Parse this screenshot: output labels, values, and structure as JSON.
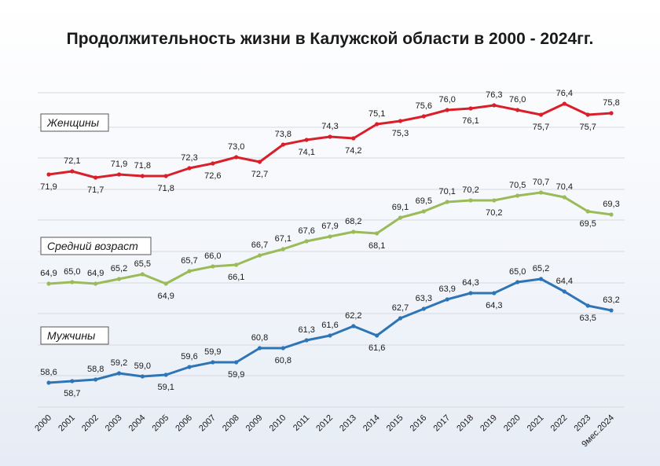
{
  "title": "Продолжительность жизни в Калужской области в 2000 - 2024гг.",
  "chart_data": {
    "type": "line",
    "title": "Продолжительность жизни в Калужской области в 2000 - 2024гг.",
    "categories": [
      "2000",
      "2001",
      "2002",
      "2003",
      "2004",
      "2005",
      "2006",
      "2007",
      "2008",
      "2009",
      "2010",
      "2011",
      "2012",
      "2013",
      "2014",
      "2015",
      "2016",
      "2017",
      "2018",
      "2019",
      "2020",
      "2021",
      "2022",
      "2023",
      "9мес.2024"
    ],
    "ylim": [
      57.5,
      77.5
    ],
    "grid": true,
    "legend": "inline labels",
    "series": [
      {
        "name": "Женщины",
        "color": "#d9202a",
        "values": [
          71.9,
          72.1,
          71.7,
          71.9,
          71.8,
          71.8,
          72.3,
          72.6,
          73.0,
          72.7,
          73.8,
          74.1,
          74.3,
          74.2,
          75.1,
          75.3,
          75.6,
          76.0,
          76.1,
          76.3,
          76.0,
          75.7,
          76.4,
          75.7,
          75.8
        ]
      },
      {
        "name": "Средний возраст",
        "color": "#9bbb59",
        "values": [
          64.9,
          65.0,
          64.9,
          65.2,
          65.5,
          64.9,
          65.7,
          66.0,
          66.1,
          66.7,
          67.1,
          67.6,
          67.9,
          68.2,
          68.1,
          69.1,
          69.5,
          70.1,
          70.2,
          70.2,
          70.5,
          70.7,
          70.4,
          69.5,
          69.3
        ]
      },
      {
        "name": "Мужчины",
        "color": "#2e75b6",
        "values": [
          58.6,
          58.7,
          58.8,
          59.2,
          59.0,
          59.1,
          59.6,
          59.9,
          59.9,
          60.8,
          60.8,
          61.3,
          61.6,
          62.2,
          61.6,
          62.7,
          63.3,
          63.9,
          64.3,
          64.3,
          65.0,
          65.2,
          64.4,
          63.5,
          63.2
        ]
      }
    ]
  }
}
